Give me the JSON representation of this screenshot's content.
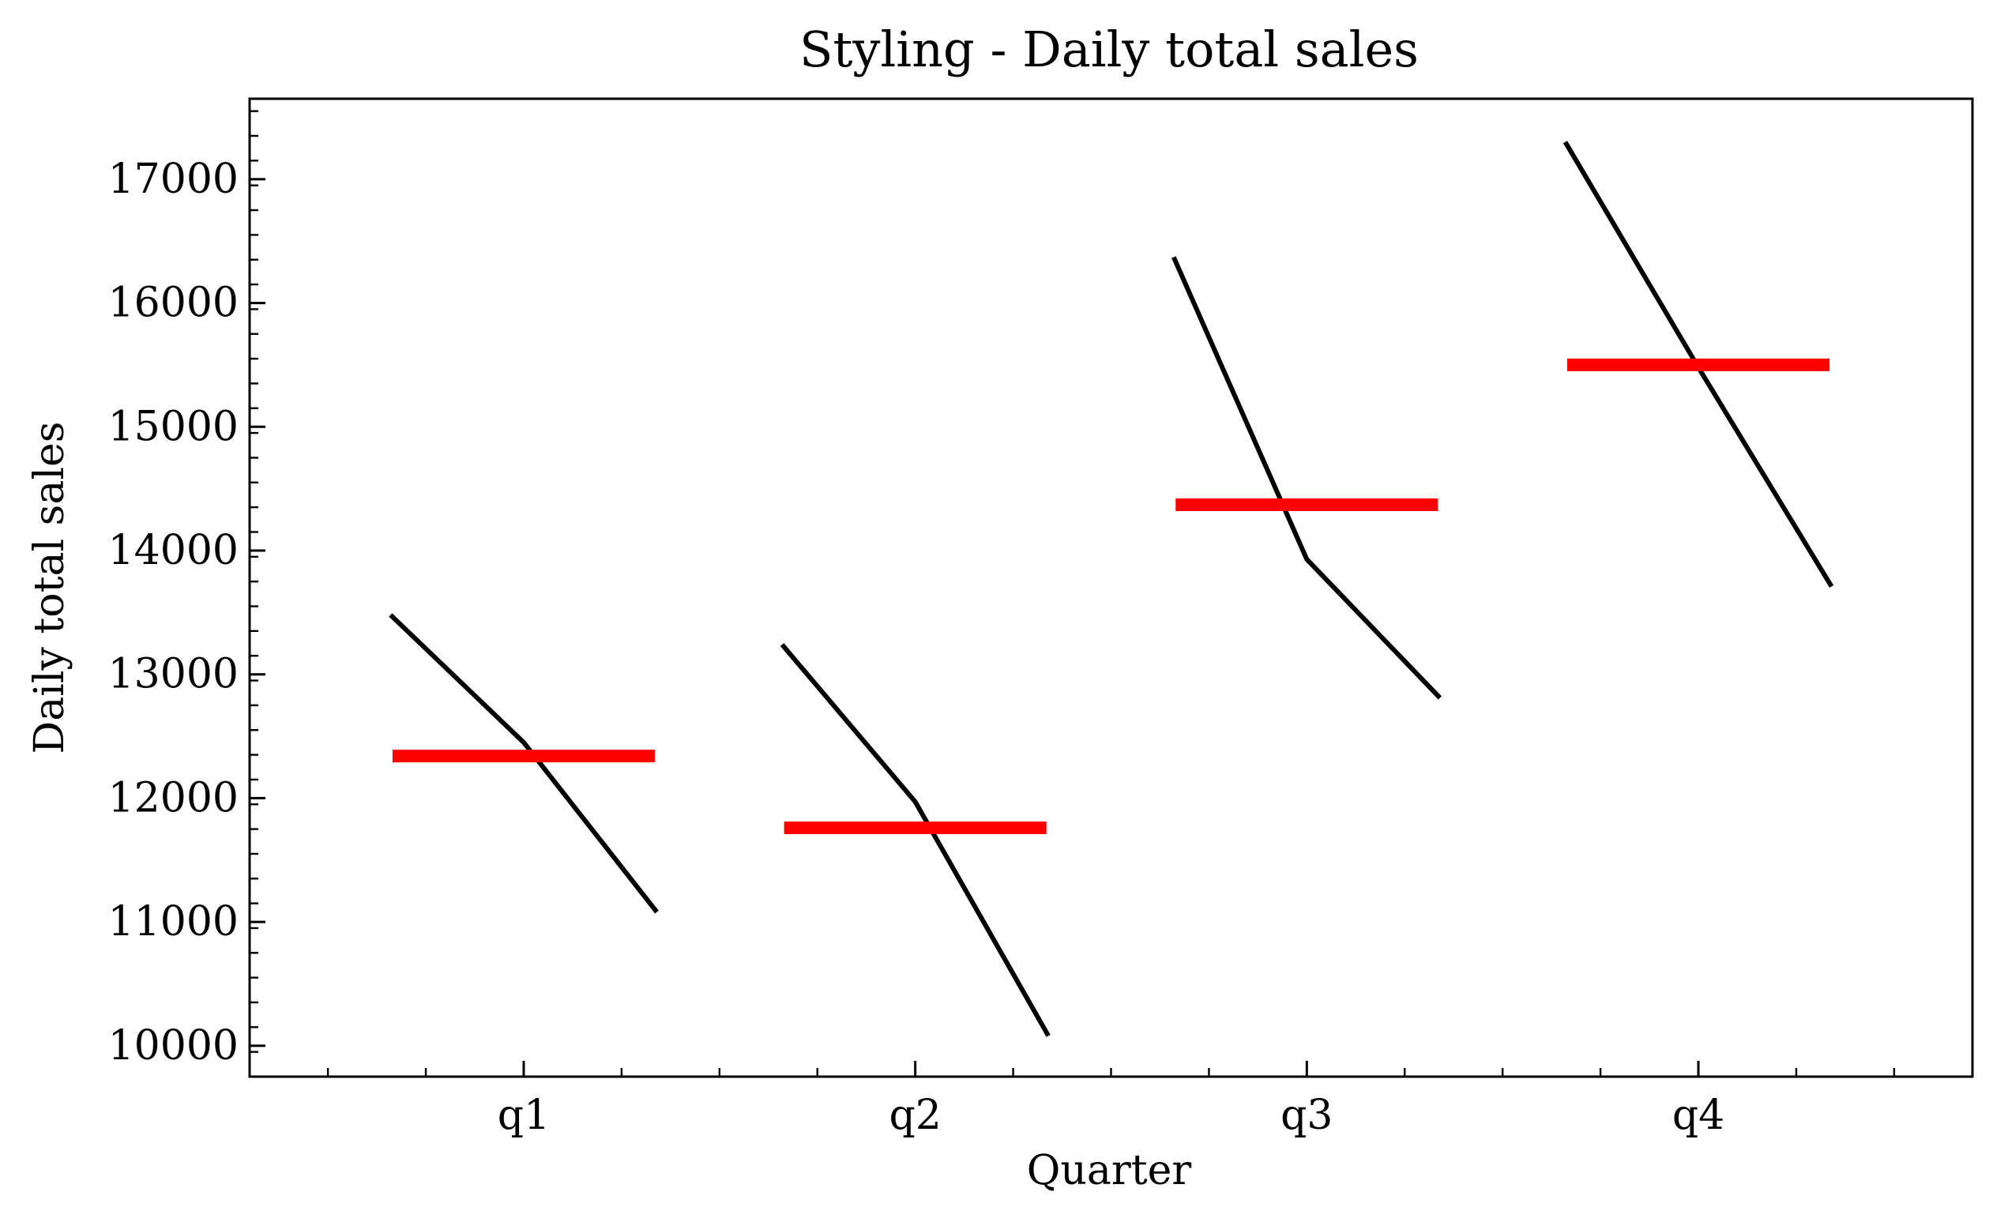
{
  "chart_data": {
    "type": "line",
    "title": "Styling - Daily total sales",
    "xlabel": "Quarter",
    "ylabel": "Daily total sales",
    "categories": [
      "q1",
      "q2",
      "q3",
      "q4"
    ],
    "ylim": [
      9750,
      17650
    ],
    "yticks": [
      10000,
      11000,
      12000,
      13000,
      14000,
      15000,
      16000,
      17000
    ],
    "ytick_labels": [
      "10000",
      "11000",
      "12000",
      "13000",
      "14000",
      "15000",
      "16000",
      "17000"
    ],
    "grid": false,
    "series": [
      {
        "values": [
          [
            13480,
            12450,
            11080
          ],
          [
            13240,
            11970,
            10080
          ],
          [
            16370,
            13930,
            12810
          ],
          [
            17300,
            15480,
            13710
          ]
        ]
      }
    ],
    "means": [
      12340,
      11760,
      14370,
      15500
    ],
    "colors": {
      "line": "#000000",
      "mean": "#ff0000"
    }
  }
}
